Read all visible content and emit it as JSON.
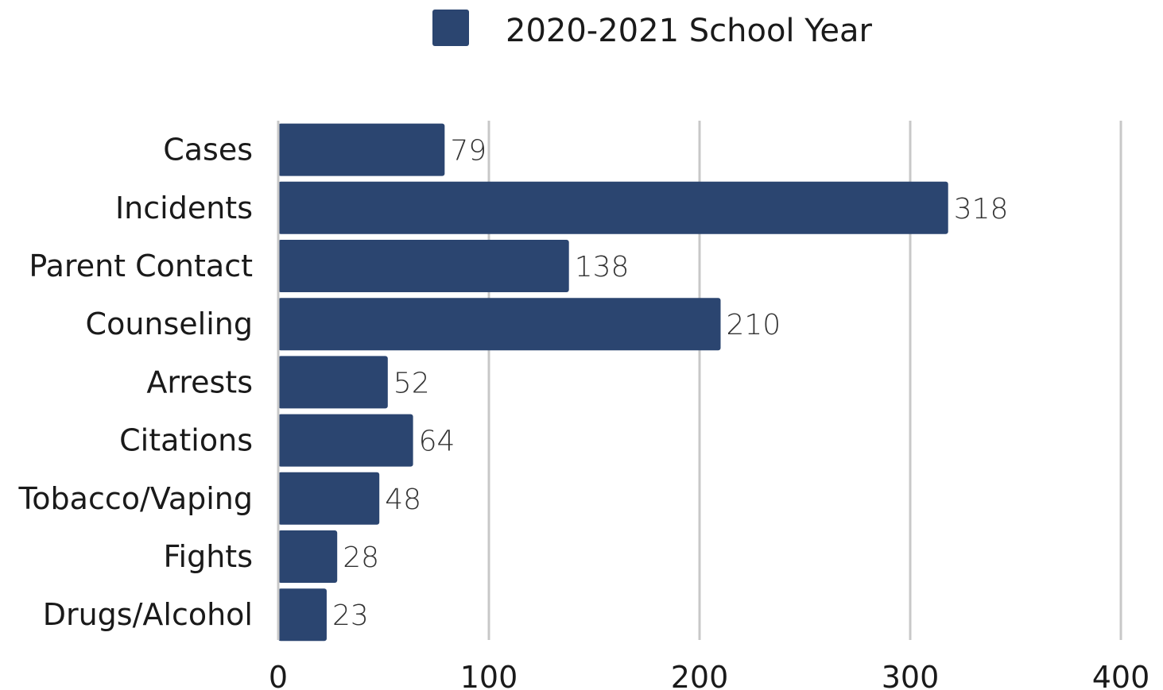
{
  "chart_data": {
    "type": "bar",
    "orientation": "horizontal",
    "categories": [
      "Cases",
      "Incidents",
      "Parent Contact",
      "Counseling",
      "Arrests",
      "Citations",
      "Tobacco/Vaping",
      "Fights",
      "Drugs/Alcohol"
    ],
    "series": [
      {
        "name": "2020-2021 School Year",
        "values": [
          79,
          318,
          138,
          210,
          52,
          64,
          48,
          28,
          23
        ],
        "color": "#2b4570"
      }
    ],
    "xlim": [
      0,
      400
    ],
    "xticks": [
      "0",
      "100",
      "200",
      "300",
      "400"
    ],
    "grid": true,
    "gridColor": "#c8c8c8",
    "legend_position": "top-center",
    "data_labels": true
  }
}
